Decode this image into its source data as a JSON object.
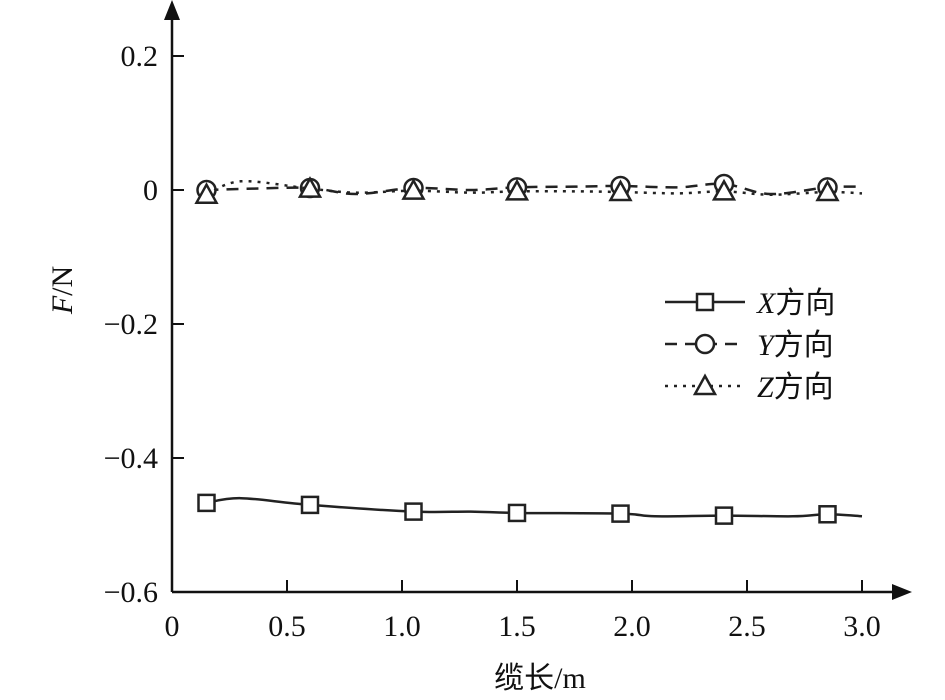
{
  "chart_data": {
    "type": "line",
    "title": "",
    "xlabel": "缆长/m",
    "ylabel": {
      "italic": "F",
      "rest": "/N"
    },
    "xlim": [
      0,
      3.0
    ],
    "ylim": [
      -0.6,
      0.2
    ],
    "x_ticks": [
      0,
      0.5,
      1.0,
      1.5,
      2.0,
      2.5,
      3.0
    ],
    "x_tick_labels": [
      "0",
      "0.5",
      "1.0",
      "1.5",
      "2.0",
      "2.5",
      "3.0"
    ],
    "y_ticks": [
      0.2,
      0,
      -0.2,
      -0.4,
      -0.6
    ],
    "y_tick_labels": [
      "0.2",
      "0",
      "−0.2",
      "−0.4",
      "−0.6"
    ],
    "grid": false,
    "legend_position": "right",
    "series": [
      {
        "name": "X方向",
        "name_italic": "X",
        "name_rest": "方向",
        "line_style": "solid",
        "marker": "square",
        "color": "#222222",
        "x": [
          0.15,
          0.3,
          0.6,
          1.05,
          1.3,
          1.5,
          1.95,
          2.1,
          2.4,
          2.7,
          2.85,
          3.0
        ],
        "y": [
          -0.467,
          -0.46,
          -0.47,
          -0.48,
          -0.48,
          -0.482,
          -0.483,
          -0.487,
          -0.486,
          -0.487,
          -0.484,
          -0.487
        ],
        "marker_x": [
          0.15,
          0.6,
          1.05,
          1.5,
          1.95,
          2.4,
          2.85
        ],
        "marker_y": [
          -0.467,
          -0.47,
          -0.48,
          -0.482,
          -0.483,
          -0.486,
          -0.484
        ]
      },
      {
        "name": "Y方向",
        "name_italic": "Y",
        "name_rest": "方向",
        "line_style": "dashed",
        "marker": "circle",
        "color": "#222222",
        "x": [
          0.15,
          0.35,
          0.6,
          0.8,
          1.05,
          1.3,
          1.5,
          1.75,
          1.95,
          2.2,
          2.4,
          2.6,
          2.85,
          3.0
        ],
        "y": [
          0.0,
          0.002,
          0.003,
          -0.006,
          0.003,
          0.0,
          0.004,
          0.005,
          0.006,
          0.004,
          0.009,
          -0.006,
          0.004,
          0.005
        ],
        "marker_x": [
          0.15,
          0.6,
          1.05,
          1.5,
          1.95,
          2.4,
          2.85
        ],
        "marker_y": [
          0.0,
          0.003,
          0.003,
          0.004,
          0.006,
          0.009,
          0.004
        ]
      },
      {
        "name": "Z方向",
        "name_italic": "Z",
        "name_rest": "方向",
        "line_style": "dotted",
        "marker": "triangle",
        "color": "#222222",
        "x": [
          0.15,
          0.3,
          0.6,
          0.8,
          1.05,
          1.3,
          1.5,
          1.75,
          1.95,
          2.2,
          2.4,
          2.6,
          2.85,
          3.0
        ],
        "y": [
          -0.007,
          0.013,
          0.002,
          -0.004,
          -0.001,
          -0.004,
          -0.002,
          -0.002,
          -0.003,
          -0.005,
          -0.002,
          -0.007,
          -0.003,
          -0.005
        ],
        "marker_x": [
          0.15,
          0.6,
          1.05,
          1.5,
          1.95,
          2.4,
          2.85
        ],
        "marker_y": [
          -0.007,
          0.002,
          -0.001,
          -0.002,
          -0.003,
          -0.002,
          -0.003
        ]
      }
    ]
  }
}
